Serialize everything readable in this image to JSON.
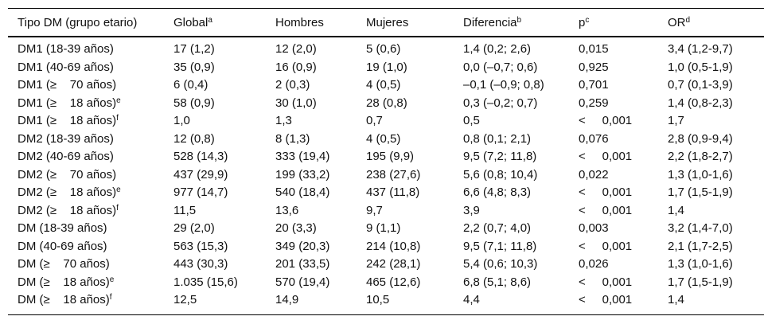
{
  "table": {
    "headers": [
      {
        "label": "Tipo DM (grupo etario)",
        "sup": ""
      },
      {
        "label": "Global",
        "sup": "a"
      },
      {
        "label": "Hombres",
        "sup": ""
      },
      {
        "label": "Mujeres",
        "sup": ""
      },
      {
        "label": "Diferencia",
        "sup": "b"
      },
      {
        "label": "p",
        "sup": "c"
      },
      {
        "label": "OR",
        "sup": "d"
      }
    ],
    "rows": [
      {
        "label": "DM1 (18-39 años)",
        "sup": "",
        "cells": [
          "17 (1,2)",
          "12 (2,0)",
          "5 (0,6)",
          "1,4 (0,2; 2,6)",
          "0,015",
          "3,4 (1,2-9,7)"
        ]
      },
      {
        "label": "DM1 (40-69 años)",
        "sup": "",
        "cells": [
          "35 (0,9)",
          "16 (0,9)",
          "19 (1,0)",
          "0,0 (–0,7; 0,6)",
          "0,925",
          "1,0 (0,5-1,9)"
        ]
      },
      {
        "label": "DM1 (≥    70 años)",
        "sup": "",
        "cells": [
          "6 (0,4)",
          "2 (0,3)",
          "4 (0,5)",
          "–0,1 (–0,9; 0,8)",
          "0,701",
          "0,7 (0,1-3,9)"
        ]
      },
      {
        "label": "DM1 (≥    18 años)",
        "sup": "e",
        "cells": [
          "58 (0,9)",
          "30 (1,0)",
          "28 (0,8)",
          "0,3 (–0,2; 0,7)",
          "0,259",
          "1,4 (0,8-2,3)"
        ]
      },
      {
        "label": "DM1 (≥    18 años)",
        "sup": "f",
        "cells": [
          "1,0",
          "1,3",
          "0,7",
          "0,5",
          "<     0,001",
          "1,7"
        ]
      },
      {
        "label": "DM2 (18-39 años)",
        "sup": "",
        "cells": [
          "12 (0,8)",
          "8 (1,3)",
          "4 (0,5)",
          "0,8 (0,1; 2,1)",
          "0,076",
          "2,8 (0,9-9,4)"
        ]
      },
      {
        "label": "DM2 (40-69 años)",
        "sup": "",
        "cells": [
          "528 (14,3)",
          "333 (19,4)",
          "195 (9,9)",
          "9,5 (7,2; 11,8)",
          "<     0,001",
          "2,2 (1,8-2,7)"
        ]
      },
      {
        "label": "DM2 (≥    70 años)",
        "sup": "",
        "cells": [
          "437 (29,9)",
          "199 (33,2)",
          "238 (27,6)",
          "5,6 (0,8; 10,4)",
          "0,022",
          "1,3 (1,0-1,6)"
        ]
      },
      {
        "label": "DM2 (≥    18 años)",
        "sup": "e",
        "cells": [
          "977 (14,7)",
          "540 (18,4)",
          "437 (11,8)",
          "6,6 (4,8; 8,3)",
          "<     0,001",
          "1,7 (1,5-1,9)"
        ]
      },
      {
        "label": "DM2 (≥    18 años)",
        "sup": "f",
        "cells": [
          "11,5",
          "13,6",
          "9,7",
          "3,9",
          "<     0,001",
          "1,4"
        ]
      },
      {
        "label": "DM (18-39 años)",
        "sup": "",
        "cells": [
          "29 (2,0)",
          "20 (3,3)",
          "9 (1,1)",
          "2,2 (0,7; 4,0)",
          "0,003",
          "3,2 (1,4-7,0)"
        ]
      },
      {
        "label": "DM (40-69 años)",
        "sup": "",
        "cells": [
          "563 (15,3)",
          "349 (20,3)",
          "214 (10,8)",
          "9,5 (7,1; 11,8)",
          "<     0,001",
          "2,1 (1,7-2,5)"
        ]
      },
      {
        "label": "DM (≥    70 años)",
        "sup": "",
        "cells": [
          "443 (30,3)",
          "201 (33,5)",
          "242 (28,1)",
          "5,4 (0,6; 10,3)",
          "0,026",
          "1,3 (1,0-1,6)"
        ]
      },
      {
        "label": "DM (≥    18 años)",
        "sup": "e",
        "cells": [
          "1.035 (15,6)",
          "570 (19,4)",
          "465 (12,6)",
          "6,8 (5,1; 8,6)",
          "<     0,001",
          "1,7 (1,5-1,9)"
        ]
      },
      {
        "label": "DM (≥    18 años)",
        "sup": "f",
        "cells": [
          "12,5",
          "14,9",
          "10,5",
          "4,4",
          "<     0,001",
          "1,4"
        ]
      }
    ]
  }
}
